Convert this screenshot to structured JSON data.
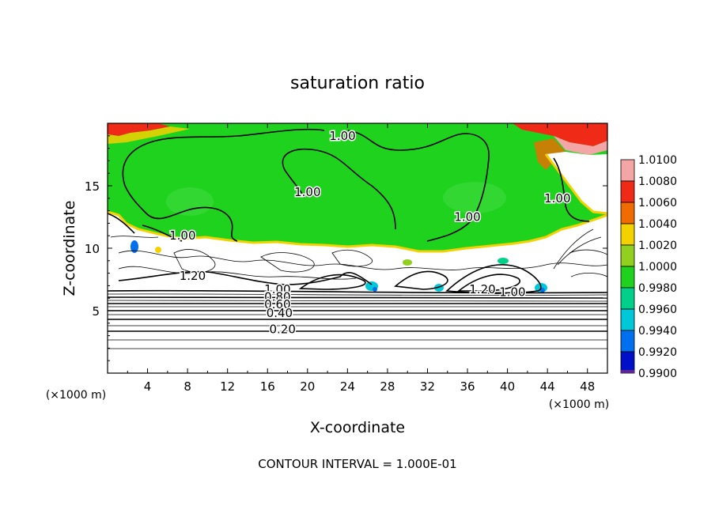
{
  "chart_data": {
    "type": "heatmap",
    "title": "saturation ratio",
    "xlabel": "X-coordinate",
    "ylabel": "Z-coordinate",
    "x_units_label": "(×1000 m)",
    "y_units_label": "(×1000 m)",
    "xlim": [
      0,
      50
    ],
    "ylim": [
      0,
      20
    ],
    "x_ticks": [
      4,
      8,
      12,
      16,
      20,
      24,
      28,
      32,
      36,
      40,
      44,
      48
    ],
    "y_ticks": [
      5,
      10,
      15
    ],
    "footer": "CONTOUR INTERVAL = 1.000E-01",
    "colorbar": {
      "levels": [
        "1.0100",
        "1.0080",
        "1.0060",
        "1.0040",
        "1.0020",
        "1.0000",
        "0.9980",
        "0.9960",
        "0.9940",
        "0.9920",
        "0.9900"
      ],
      "colors": [
        "#f4a6a6",
        "#ef2b17",
        "#f06b00",
        "#f4d100",
        "#92d020",
        "#1ed21e",
        "#00d08a",
        "#00c8d8",
        "#0070f0",
        "#0010c8",
        "#5a2890"
      ]
    },
    "contour_labels": [
      {
        "text": "1.00",
        "x": 23.5,
        "z": 19.0
      },
      {
        "text": "1.00",
        "x": 20.0,
        "z": 14.5
      },
      {
        "text": "1.00",
        "x": 36.0,
        "z": 12.5
      },
      {
        "text": "1.00",
        "x": 45.0,
        "z": 14.0
      },
      {
        "text": "1.00",
        "x": 7.5,
        "z": 11.0
      },
      {
        "text": "1.20",
        "x": 8.5,
        "z": 7.8
      },
      {
        "text": "1.00",
        "x": 17.0,
        "z": 6.7
      },
      {
        "text": "0.80",
        "x": 17.0,
        "z": 6.1
      },
      {
        "text": "0.60",
        "x": 17.0,
        "z": 5.5
      },
      {
        "text": "0.40",
        "x": 17.2,
        "z": 4.8
      },
      {
        "text": "0.20",
        "x": 17.5,
        "z": 3.5
      },
      {
        "text": "1.20",
        "x": 37.5,
        "z": 6.7
      },
      {
        "text": "1.00",
        "x": 40.5,
        "z": 6.5
      }
    ]
  }
}
